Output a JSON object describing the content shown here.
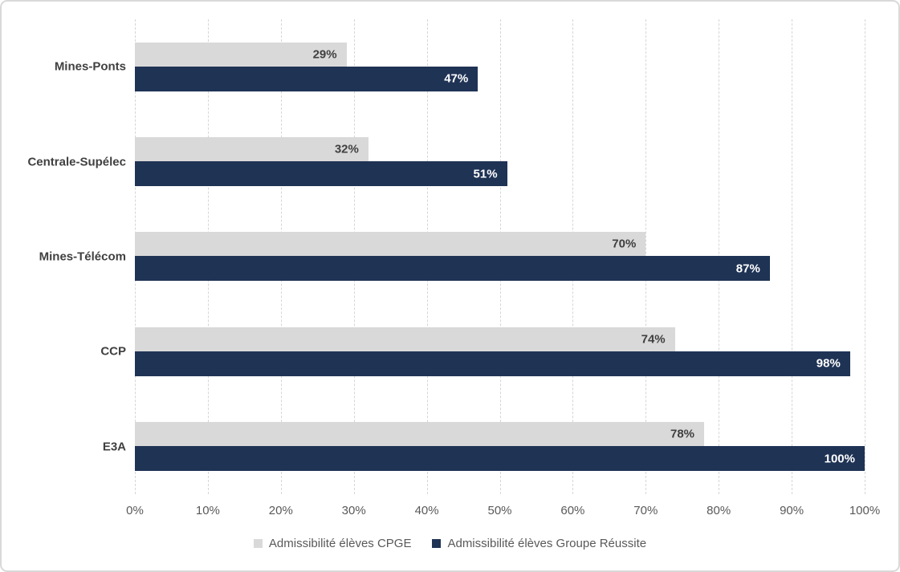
{
  "chart_data": {
    "type": "bar",
    "orientation": "horizontal",
    "title": "",
    "categories": [
      "Mines-Ponts",
      "Centrale-Supélec",
      "Mines-Télécom",
      "CCP",
      "E3A"
    ],
    "series": [
      {
        "key": "cpge",
        "name": "Admissibilité élèves CPGE",
        "color": "#d9d9d9",
        "label_color": "#404040",
        "values": [
          29,
          32,
          70,
          74,
          78
        ]
      },
      {
        "key": "groupe-reussite",
        "name": "Admissibilité élèves Groupe Réussite",
        "color": "#1f3355",
        "label_color": "#ffffff",
        "values": [
          47,
          51,
          87,
          98,
          100
        ]
      }
    ],
    "value_suffix": "%",
    "x_ticks": [
      0,
      10,
      20,
      30,
      40,
      50,
      60,
      70,
      80,
      90,
      100
    ],
    "x_tick_labels": [
      "0%",
      "10%",
      "20%",
      "30%",
      "40%",
      "50%",
      "60%",
      "70%",
      "80%",
      "90%",
      "100%"
    ],
    "xlim": [
      0,
      100
    ],
    "grid": "vertical-dashed",
    "legend_position": "bottom",
    "style": {
      "gridline_color": "#d6d6d6",
      "category_label_color": "#404040",
      "tick_label_color": "#595959",
      "legend_text_color": "#595959",
      "frame_border_color": "#d9d9d9",
      "background_color": "#ffffff"
    }
  }
}
